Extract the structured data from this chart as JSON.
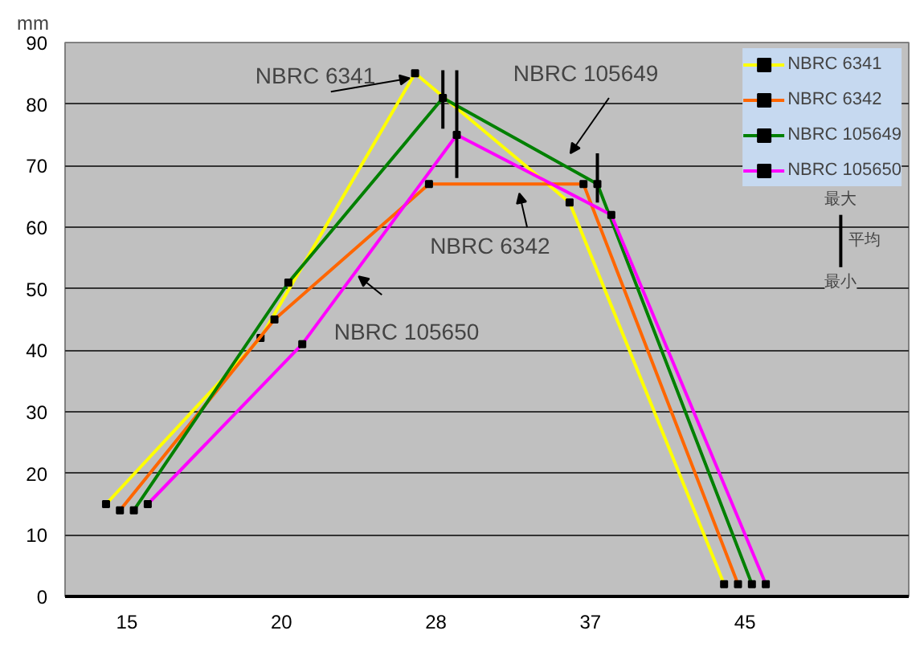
{
  "chart_data": {
    "type": "line",
    "ylabel": "mm",
    "categories": [
      "15",
      "20",
      "28",
      "37",
      "45"
    ],
    "ylim": [
      0,
      90
    ],
    "yticks": [
      0,
      10,
      20,
      30,
      40,
      50,
      60,
      70,
      80,
      90
    ],
    "grid": "y",
    "legend": "top right",
    "marker": "square",
    "line_style": "solid",
    "series": [
      {
        "name": "NBRC 6341",
        "color": "#ffff00",
        "values": [
          15,
          42,
          85,
          64,
          2
        ]
      },
      {
        "name": "NBRC 6342",
        "color": "#ff6600",
        "values": [
          14,
          45,
          67,
          67,
          2
        ]
      },
      {
        "name": "NBRC 105649",
        "color": "#008000",
        "values": [
          14,
          51,
          81,
          67,
          2
        ],
        "errors": [
          null,
          null,
          [
            76,
            85.5
          ],
          [
            64,
            72
          ],
          null
        ]
      },
      {
        "name": "NBRC 105650",
        "color": "#ff00ff",
        "values": [
          15,
          41,
          75,
          62,
          2
        ],
        "errors": [
          null,
          null,
          [
            68,
            85.5
          ],
          null,
          null
        ]
      }
    ],
    "annotations": [
      {
        "text": "NBRC 6341",
        "x": "28",
        "y": 85
      },
      "NBRC 105649",
      "NBRC 6342",
      "NBRC 105650",
      "最大",
      "平均",
      "最小"
    ]
  }
}
